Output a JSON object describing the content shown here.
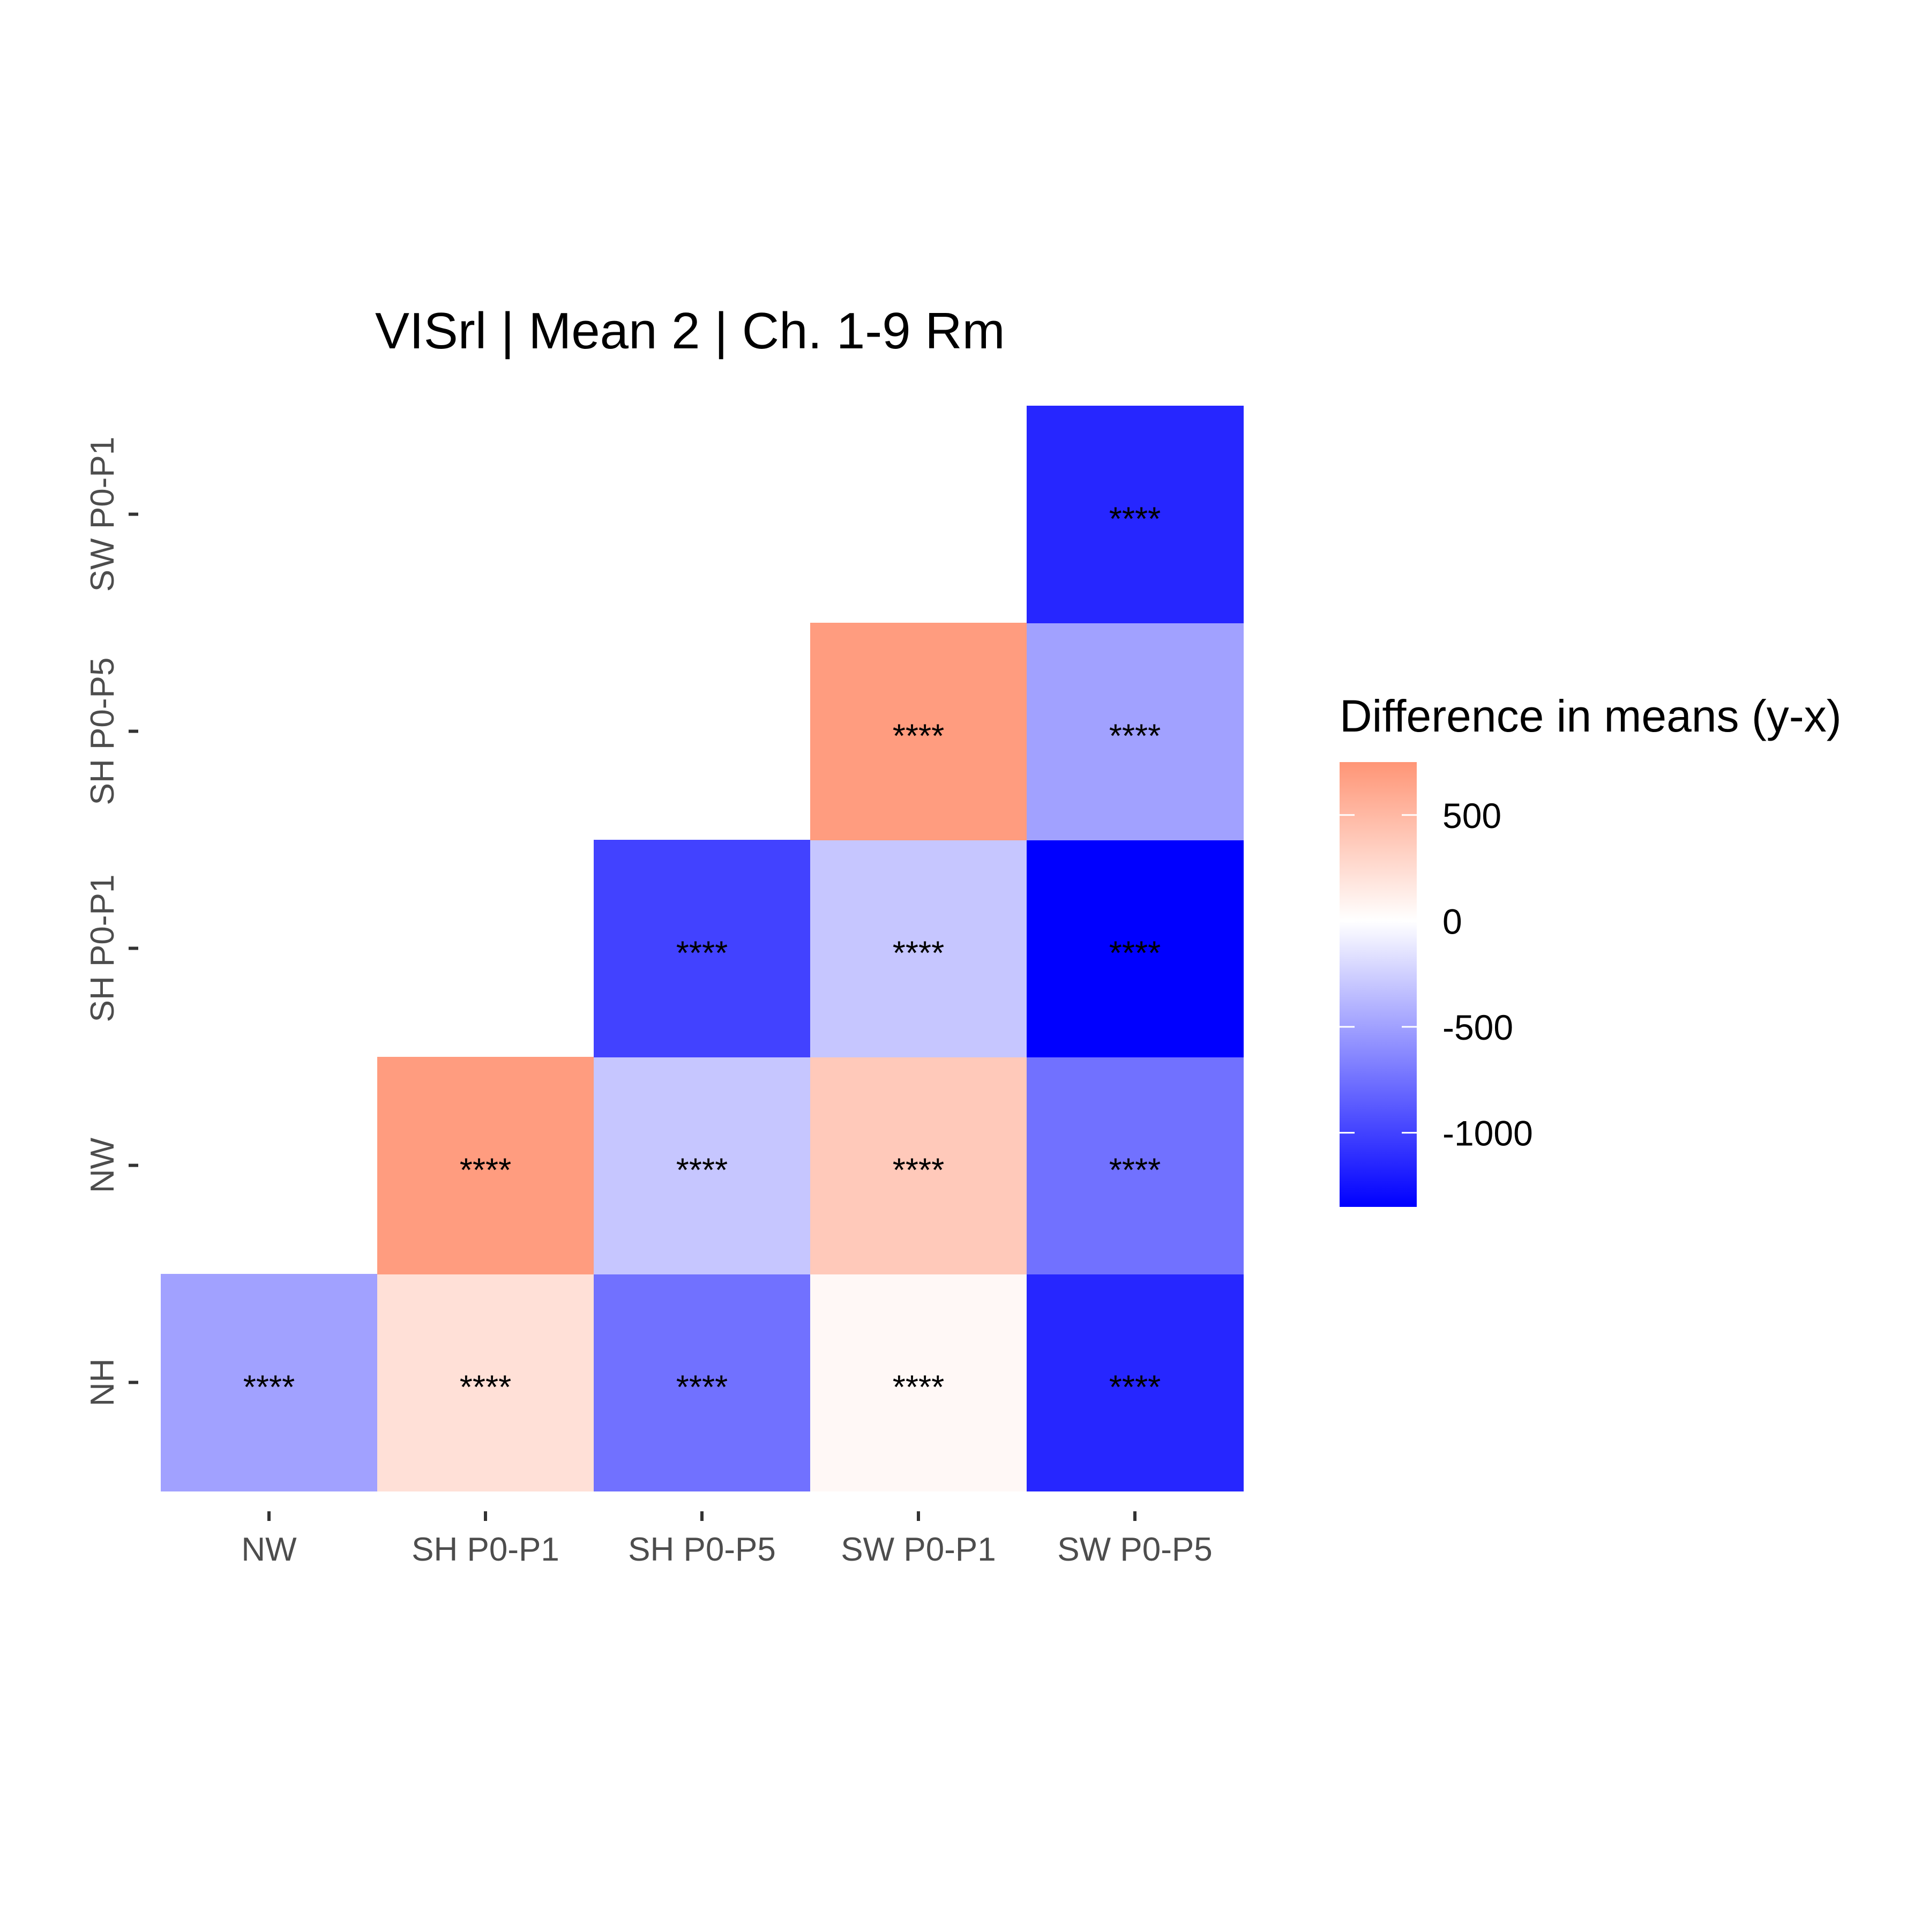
{
  "chart_data": {
    "type": "heatmap",
    "title": "VISrl | Mean 2 | Ch. 1-9 Rm",
    "xlabel": "",
    "ylabel": "",
    "x_categories": [
      "NW",
      "SH P0-P1",
      "SH P0-P5",
      "SW P0-P1",
      "SW P0-P5"
    ],
    "y_categories": [
      "NH",
      "NW",
      "SH P0-P1",
      "SH P0-P5",
      "SW P0-P1"
    ],
    "cells": [
      {
        "x": "NW",
        "y": "NH",
        "value": -500,
        "label": "****"
      },
      {
        "x": "SH P0-P1",
        "y": "NH",
        "value": 220,
        "label": "****"
      },
      {
        "x": "SH P0-P5",
        "y": "NH",
        "value": -750,
        "label": "****"
      },
      {
        "x": "SW P0-P1",
        "y": "NH",
        "value": 50,
        "label": "****"
      },
      {
        "x": "SW P0-P5",
        "y": "NH",
        "value": -1150,
        "label": "****"
      },
      {
        "x": "SH P0-P1",
        "y": "NW",
        "value": 700,
        "label": "****"
      },
      {
        "x": "SH P0-P5",
        "y": "NW",
        "value": -300,
        "label": "****"
      },
      {
        "x": "SW P0-P1",
        "y": "NW",
        "value": 380,
        "label": "****"
      },
      {
        "x": "SW P0-P5",
        "y": "NW",
        "value": -750,
        "label": "****"
      },
      {
        "x": "SH P0-P5",
        "y": "SH P0-P1",
        "value": -1000,
        "label": "****"
      },
      {
        "x": "SW P0-P1",
        "y": "SH P0-P1",
        "value": -300,
        "label": "****"
      },
      {
        "x": "SW P0-P5",
        "y": "SH P0-P1",
        "value": -1350,
        "label": "****"
      },
      {
        "x": "SW P0-P1",
        "y": "SH P0-P5",
        "value": 700,
        "label": "****"
      },
      {
        "x": "SW P0-P5",
        "y": "SH P0-P5",
        "value": -500,
        "label": "****"
      },
      {
        "x": "SW P0-P5",
        "y": "SW P0-P1",
        "value": -1150,
        "label": "****"
      }
    ],
    "legend": {
      "title": "Difference in means (y-x)",
      "ticks": [
        500,
        0,
        -500,
        -1000
      ],
      "range": [
        -1350,
        750
      ],
      "colors": {
        "low": "#0000ff",
        "mid": "#ffffff",
        "high": "#ff9576"
      }
    },
    "grid": false,
    "legend_placement": "right"
  }
}
